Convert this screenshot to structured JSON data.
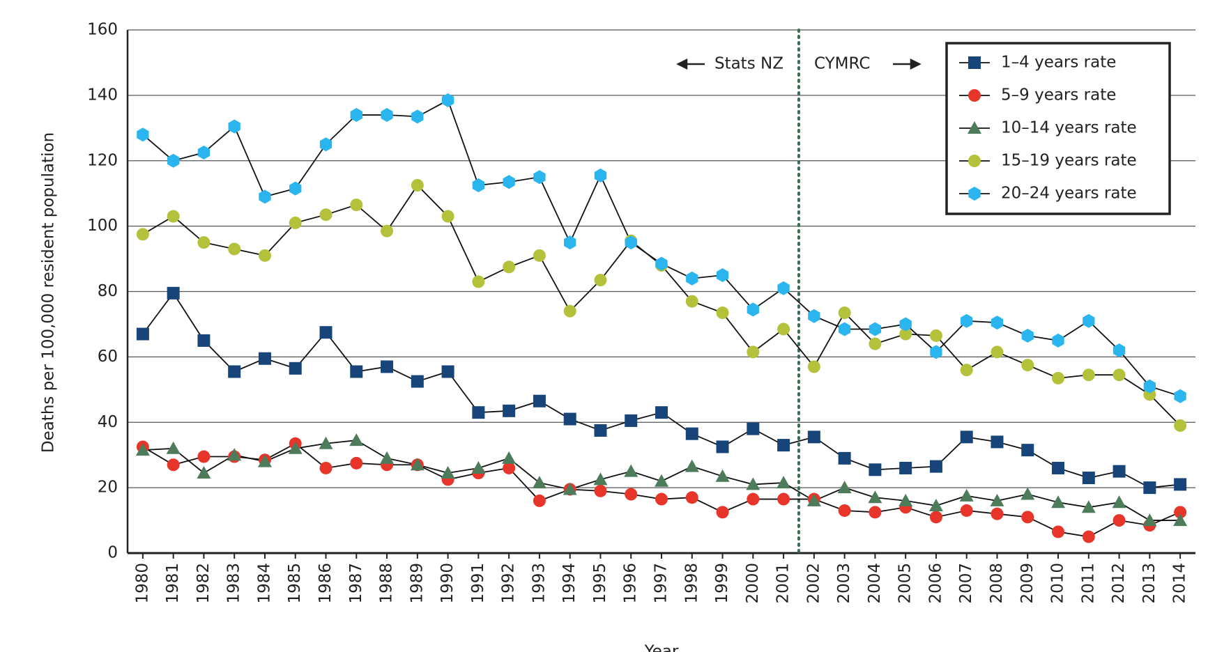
{
  "chart_data": {
    "type": "line",
    "x_label": "Year",
    "y_label": "Deaths per 100,000 resident population",
    "x": [
      1980,
      1981,
      1982,
      1983,
      1984,
      1985,
      1986,
      1987,
      1988,
      1989,
      1990,
      1991,
      1992,
      1993,
      1994,
      1995,
      1996,
      1997,
      1998,
      1999,
      2000,
      2001,
      2002,
      2003,
      2004,
      2005,
      2006,
      2007,
      2008,
      2009,
      2010,
      2011,
      2012,
      2013,
      2014
    ],
    "xlim": [
      1979.5,
      2014.5
    ],
    "ylim": [
      0,
      160
    ],
    "yticks": [
      0,
      20,
      40,
      60,
      80,
      100,
      120,
      140,
      160
    ],
    "grid": true,
    "legend": "upper right",
    "annotations": {
      "left": "Stats NZ",
      "right": "CYMRC",
      "divider": 2001.5
    },
    "series": [
      {
        "name": "1–4 years rate",
        "color": "#17457a",
        "marker": "square",
        "values": [
          67,
          79.5,
          65,
          55.5,
          59.5,
          56.5,
          67.5,
          55.5,
          57,
          52.5,
          55.5,
          43,
          43.5,
          46.5,
          41,
          37.5,
          40.5,
          43,
          36.5,
          32.5,
          38,
          33,
          35.5,
          29,
          25.5,
          26,
          26.5,
          35.5,
          34,
          31.5,
          26,
          23,
          25,
          20,
          21
        ]
      },
      {
        "name": "5–9 years rate",
        "color": "#e8352a",
        "marker": "circle",
        "values": [
          32.5,
          27,
          29.5,
          29.5,
          28.5,
          33.5,
          26,
          27.5,
          27,
          27,
          22.5,
          24.5,
          26,
          16,
          19.5,
          19,
          18,
          16.5,
          17,
          12.5,
          16.5,
          16.5,
          16.5,
          13,
          12.5,
          14,
          11,
          13,
          12,
          11,
          6.5,
          5,
          10,
          8.5,
          12.5
        ]
      },
      {
        "name": "10–14 years rate",
        "color": "#4d7c5a",
        "marker": "triangle",
        "values": [
          31.5,
          32,
          24.5,
          30,
          28,
          32,
          33.5,
          34.5,
          29,
          27,
          24.5,
          26,
          29,
          21.5,
          19.5,
          22.5,
          25,
          22,
          26.5,
          23.5,
          21,
          21.5,
          16,
          20,
          17,
          16,
          14.5,
          17.5,
          16,
          18,
          15.5,
          14,
          15.5,
          10,
          10
        ]
      },
      {
        "name": "15–19 years rate",
        "color": "#b3c23a",
        "marker": "circle",
        "values": [
          97.5,
          103,
          95,
          93,
          91,
          101,
          103.5,
          106.5,
          98.5,
          112.5,
          103,
          83,
          87.5,
          91,
          74,
          83.5,
          95.5,
          88,
          77,
          73.5,
          61.5,
          68.5,
          57,
          73.5,
          64,
          67,
          66.5,
          56,
          61.5,
          57.5,
          53.5,
          54.5,
          54.5,
          48.5,
          39
        ]
      },
      {
        "name": "20–24 years rate",
        "color": "#2bb5ef",
        "marker": "hexagon",
        "values": [
          128,
          120,
          122.5,
          130.5,
          109,
          111.5,
          125,
          134,
          134,
          133.5,
          138.5,
          112.5,
          113.5,
          115,
          95,
          115.5,
          95,
          88.5,
          84,
          85,
          74.5,
          81,
          72.5,
          68.5,
          68.5,
          70,
          61.5,
          71,
          70.5,
          66.5,
          65,
          71,
          62,
          51,
          48
        ]
      }
    ]
  }
}
